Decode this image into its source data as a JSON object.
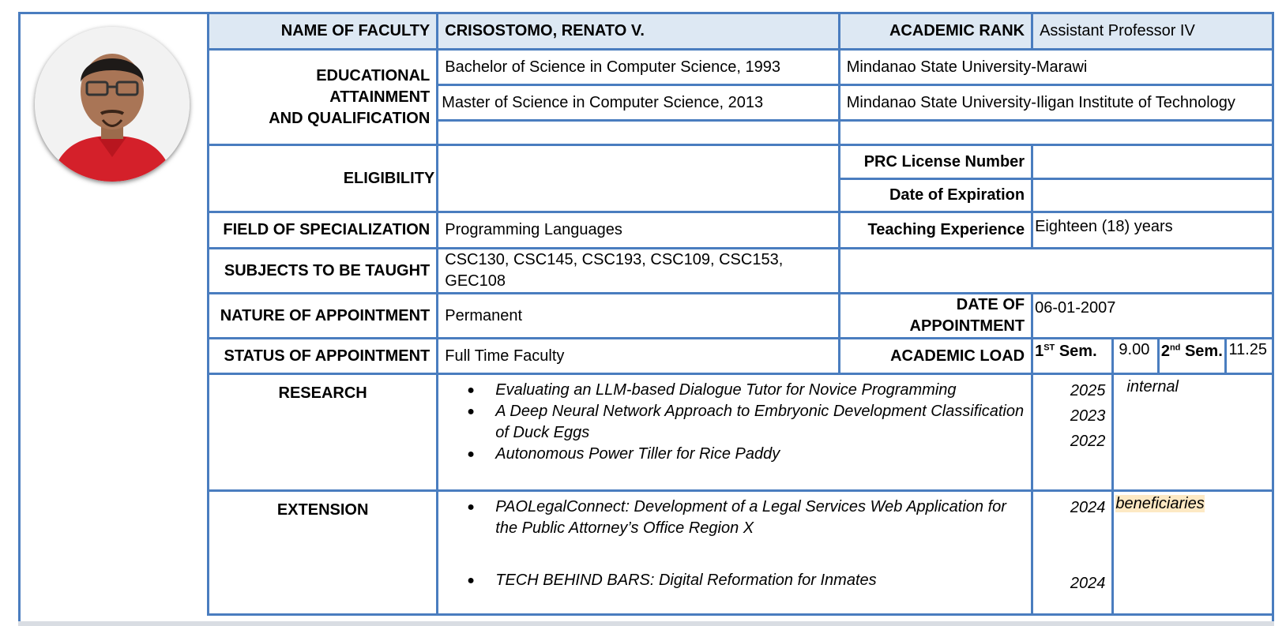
{
  "faculty": {
    "name_label": "NAME OF FACULTY",
    "name": "CRISOSTOMO, RENATO V.",
    "rank_label": "ACADEMIC RANK",
    "rank": "Assistant Professor IV"
  },
  "education": {
    "label_line1": "EDUCATIONAL ATTAINMENT",
    "label_line2": "AND QUALIFICATION",
    "rows": [
      {
        "degree": "Bachelor of Science in Computer Science, 1993",
        "school": "Mindanao State University-Marawi"
      },
      {
        "degree": "Master of Science in Computer Science, 2013",
        "school": "Mindanao State University-Iligan Institute of Technology"
      },
      {
        "degree": "",
        "school": ""
      }
    ]
  },
  "eligibility": {
    "label": "ELIGIBILITY",
    "value": "",
    "prc_label": "PRC License Number",
    "prc_value": "",
    "expiration_label": "Date of Expiration",
    "expiration_value": ""
  },
  "specialization": {
    "label": "FIELD OF SPECIALIZATION",
    "value": "Programming Languages",
    "experience_label": "Teaching Experience",
    "experience_value": "Eighteen (18) years"
  },
  "subjects": {
    "label": "SUBJECTS TO BE TAUGHT",
    "value": "CSC130, CSC145, CSC193, CSC109, CSC153, GEC108"
  },
  "appointment": {
    "nature_label": "NATURE OF APPOINTMENT",
    "nature_value": "Permanent",
    "date_label": "DATE OF APPOINTMENT",
    "date_value": "06-01-2007",
    "status_label": "STATUS OF APPOINTMENT",
    "status_value": "Full Time Faculty",
    "load_label": "ACADEMIC LOAD",
    "sem1_num": "1",
    "sem1_sup": "ST",
    "sem1_text": " Sem.",
    "sem1_value": "9.00",
    "sem2_num": "2",
    "sem2_sup": "nd",
    "sem2_text": " Sem.",
    "sem2_value": "11.25"
  },
  "research": {
    "label": "RESEARCH",
    "items": [
      "Evaluating an LLM-based Dialogue Tutor for Novice Programming",
      "A Deep Neural Network Approach to Embryonic Development Classification of Duck Eggs",
      "Autonomous Power Tiller for Rice Paddy"
    ],
    "years": [
      "2025",
      "2023",
      "2022"
    ],
    "note": "internal"
  },
  "extension": {
    "label": "EXTENSION",
    "items": [
      "PAOLegalConnect: Development of a Legal Services Web Application for the Public Attorney’s Office Region X",
      "TECH BEHIND BARS: Digital Reformation for Inmates"
    ],
    "years": [
      "2024",
      "2024"
    ],
    "note": "beneficiaries"
  },
  "colors": {
    "border": "#4a7dbf",
    "header_bg": "#dde8f3",
    "highlight": "#fde9c4"
  }
}
